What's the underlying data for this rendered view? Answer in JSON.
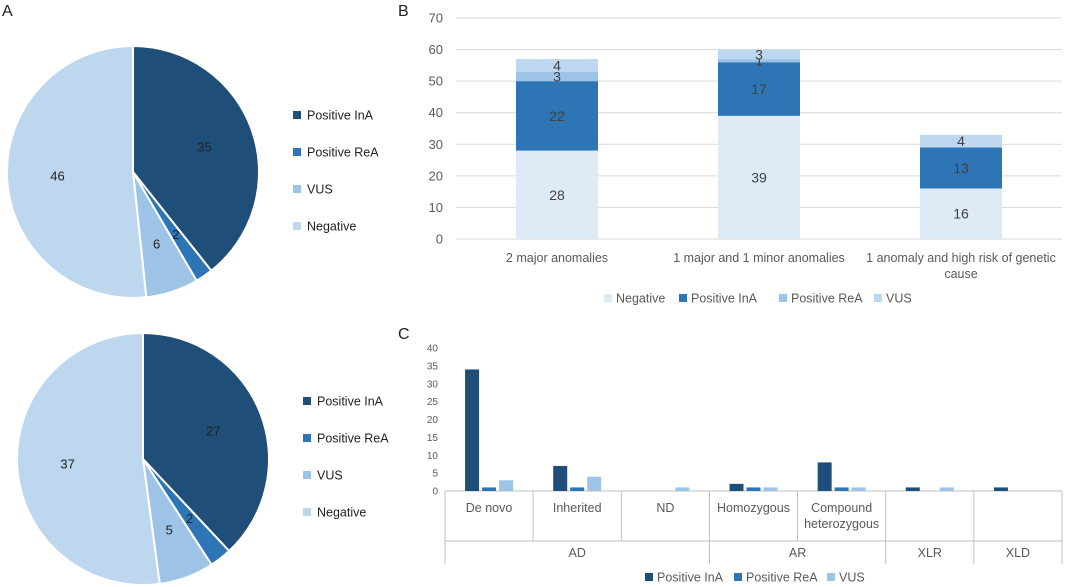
{
  "panels": {
    "a": "A",
    "b": "B",
    "c": "C"
  },
  "colors": {
    "positive_ina": "#1f4e79",
    "positive_rea": "#2e75b6",
    "vus": "#9dc3e6",
    "negative": "#bdd7ee",
    "negative_bar": "#deebf7",
    "grid": "#d9d9d9",
    "axis": "#bfbfbf"
  },
  "chart_data": [
    {
      "id": "A1",
      "type": "pie",
      "slices": [
        {
          "label": "Positive InA",
          "value": 35,
          "color_key": "positive_ina"
        },
        {
          "label": "Positive ReA",
          "value": 2,
          "color_key": "positive_rea"
        },
        {
          "label": "VUS",
          "value": 6,
          "color_key": "vus"
        },
        {
          "label": "Negative",
          "value": 46,
          "color_key": "negative"
        }
      ],
      "legend": [
        "Positive InA",
        "Positive ReA",
        "VUS",
        "Negative"
      ]
    },
    {
      "id": "A2",
      "type": "pie",
      "slices": [
        {
          "label": "Positive InA",
          "value": 27,
          "color_key": "positive_ina"
        },
        {
          "label": "Positive ReA",
          "value": 2,
          "color_key": "positive_rea"
        },
        {
          "label": "VUS",
          "value": 5,
          "color_key": "vus"
        },
        {
          "label": "Negative",
          "value": 37,
          "color_key": "negative"
        }
      ],
      "legend": [
        "Positive InA",
        "Positive ReA",
        "VUS",
        "Negative"
      ]
    },
    {
      "id": "B",
      "type": "bar",
      "stacked": true,
      "categories": [
        [
          "2  major anomalies"
        ],
        [
          "1  major and 1 minor anomalies"
        ],
        [
          "1 anomaly and high risk of genetic",
          "cause"
        ]
      ],
      "series": [
        {
          "name": "Negative",
          "values": [
            28,
            39,
            16
          ],
          "color_key": "negative_bar",
          "labels": [
            "28",
            "39",
            "16"
          ]
        },
        {
          "name": "Positive InA",
          "values": [
            22,
            17,
            13
          ],
          "color_key": "positive_rea",
          "labels": [
            "22",
            "17",
            "13"
          ]
        },
        {
          "name": "Positive ReA",
          "values": [
            3,
            1,
            0
          ],
          "color_key": "vus",
          "labels": [
            "3",
            "1",
            ""
          ]
        },
        {
          "name": "VUS",
          "values": [
            4,
            3,
            4
          ],
          "color_key": "negative",
          "labels": [
            "4",
            "3",
            "4"
          ]
        }
      ],
      "ylim": [
        0,
        70
      ],
      "yticks": [
        0,
        10,
        20,
        30,
        40,
        50,
        60,
        70
      ],
      "legend": [
        "Negative",
        "Positive InA",
        "Positive ReA",
        "VUS"
      ]
    },
    {
      "id": "C",
      "type": "bar",
      "stacked": false,
      "categories": [
        [
          "De novo"
        ],
        [
          "Inherited"
        ],
        [
          "ND"
        ],
        [
          "Homozygous"
        ],
        [
          "Compound",
          "heterozygous"
        ],
        [
          ""
        ],
        [
          ""
        ]
      ],
      "groups": [
        "AD",
        "AR",
        "XLR",
        "XLD"
      ],
      "series": [
        {
          "name": "Positive InA",
          "values": [
            34,
            7,
            0,
            2,
            8,
            1,
            1
          ],
          "color_key": "positive_ina"
        },
        {
          "name": "Positive ReA",
          "values": [
            1,
            1,
            0,
            1,
            1,
            0,
            0
          ],
          "color_key": "positive_rea"
        },
        {
          "name": "VUS",
          "values": [
            3,
            4,
            1,
            1,
            1,
            1,
            0
          ],
          "color_key": "vus"
        }
      ],
      "ylim": [
        0,
        40
      ],
      "yticks": [
        0,
        5,
        10,
        15,
        20,
        25,
        30,
        35,
        40
      ],
      "legend": [
        "Positive InA",
        "Positive ReA",
        "VUS"
      ]
    }
  ]
}
